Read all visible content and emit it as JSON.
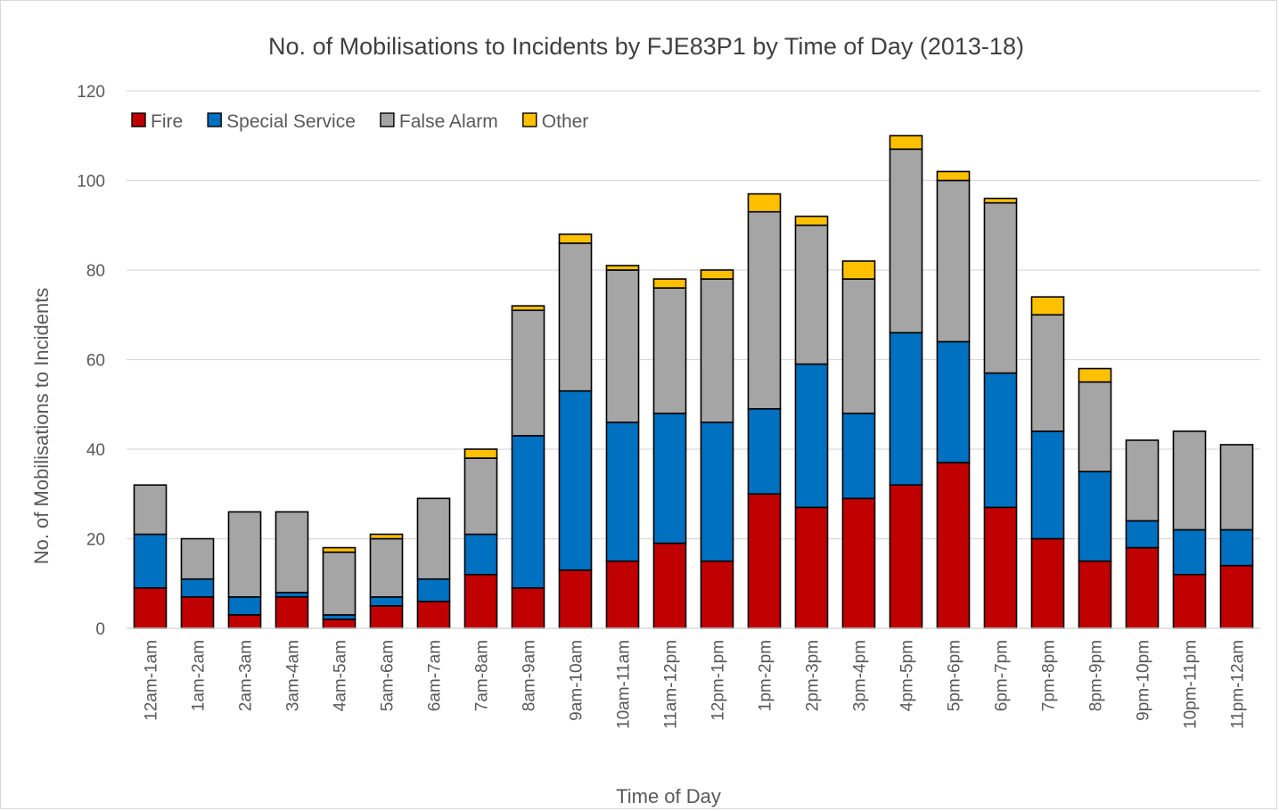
{
  "chart_data": {
    "type": "bar",
    "stacked": true,
    "title": "No. of Mobilisations to Incidents by FJE83P1 by Time of Day (2013-18)",
    "xlabel": "Time of Day",
    "ylabel": "No. of Mobilisations to Incidents",
    "ylim": [
      0,
      120
    ],
    "yticks": [
      0,
      20,
      40,
      60,
      80,
      100,
      120
    ],
    "grid": true,
    "legend_position": "top-left",
    "categories": [
      "12am-1am",
      "1am-2am",
      "2am-3am",
      "3am-4am",
      "4am-5am",
      "5am-6am",
      "6am-7am",
      "7am-8am",
      "8am-9am",
      "9am-10am",
      "10am-11am",
      "11am-12pm",
      "12pm-1pm",
      "1pm-2pm",
      "2pm-3pm",
      "3pm-4pm",
      "4pm-5pm",
      "5pm-6pm",
      "6pm-7pm",
      "7pm-8pm",
      "8pm-9pm",
      "9pm-10pm",
      "10pm-11pm",
      "11pm-12am"
    ],
    "series": [
      {
        "name": "Fire",
        "color": "#c00000",
        "values": [
          9,
          7,
          3,
          7,
          2,
          5,
          6,
          12,
          9,
          13,
          15,
          19,
          15,
          30,
          27,
          29,
          32,
          37,
          27,
          20,
          15,
          18,
          12,
          14
        ]
      },
      {
        "name": "Special Service",
        "color": "#0070c0",
        "values": [
          12,
          4,
          4,
          1,
          1,
          2,
          5,
          9,
          34,
          40,
          31,
          29,
          31,
          19,
          32,
          19,
          34,
          27,
          30,
          24,
          20,
          6,
          10,
          8
        ]
      },
      {
        "name": "False Alarm",
        "color": "#a5a5a5",
        "values": [
          11,
          9,
          19,
          18,
          14,
          13,
          18,
          17,
          28,
          33,
          34,
          28,
          32,
          44,
          31,
          30,
          41,
          36,
          38,
          26,
          20,
          18,
          22,
          19
        ]
      },
      {
        "name": "Other",
        "color": "#ffc000",
        "values": [
          0,
          0,
          0,
          0,
          1,
          1,
          0,
          2,
          1,
          2,
          1,
          2,
          2,
          4,
          2,
          4,
          3,
          2,
          1,
          4,
          3,
          0,
          0,
          0
        ]
      }
    ]
  }
}
